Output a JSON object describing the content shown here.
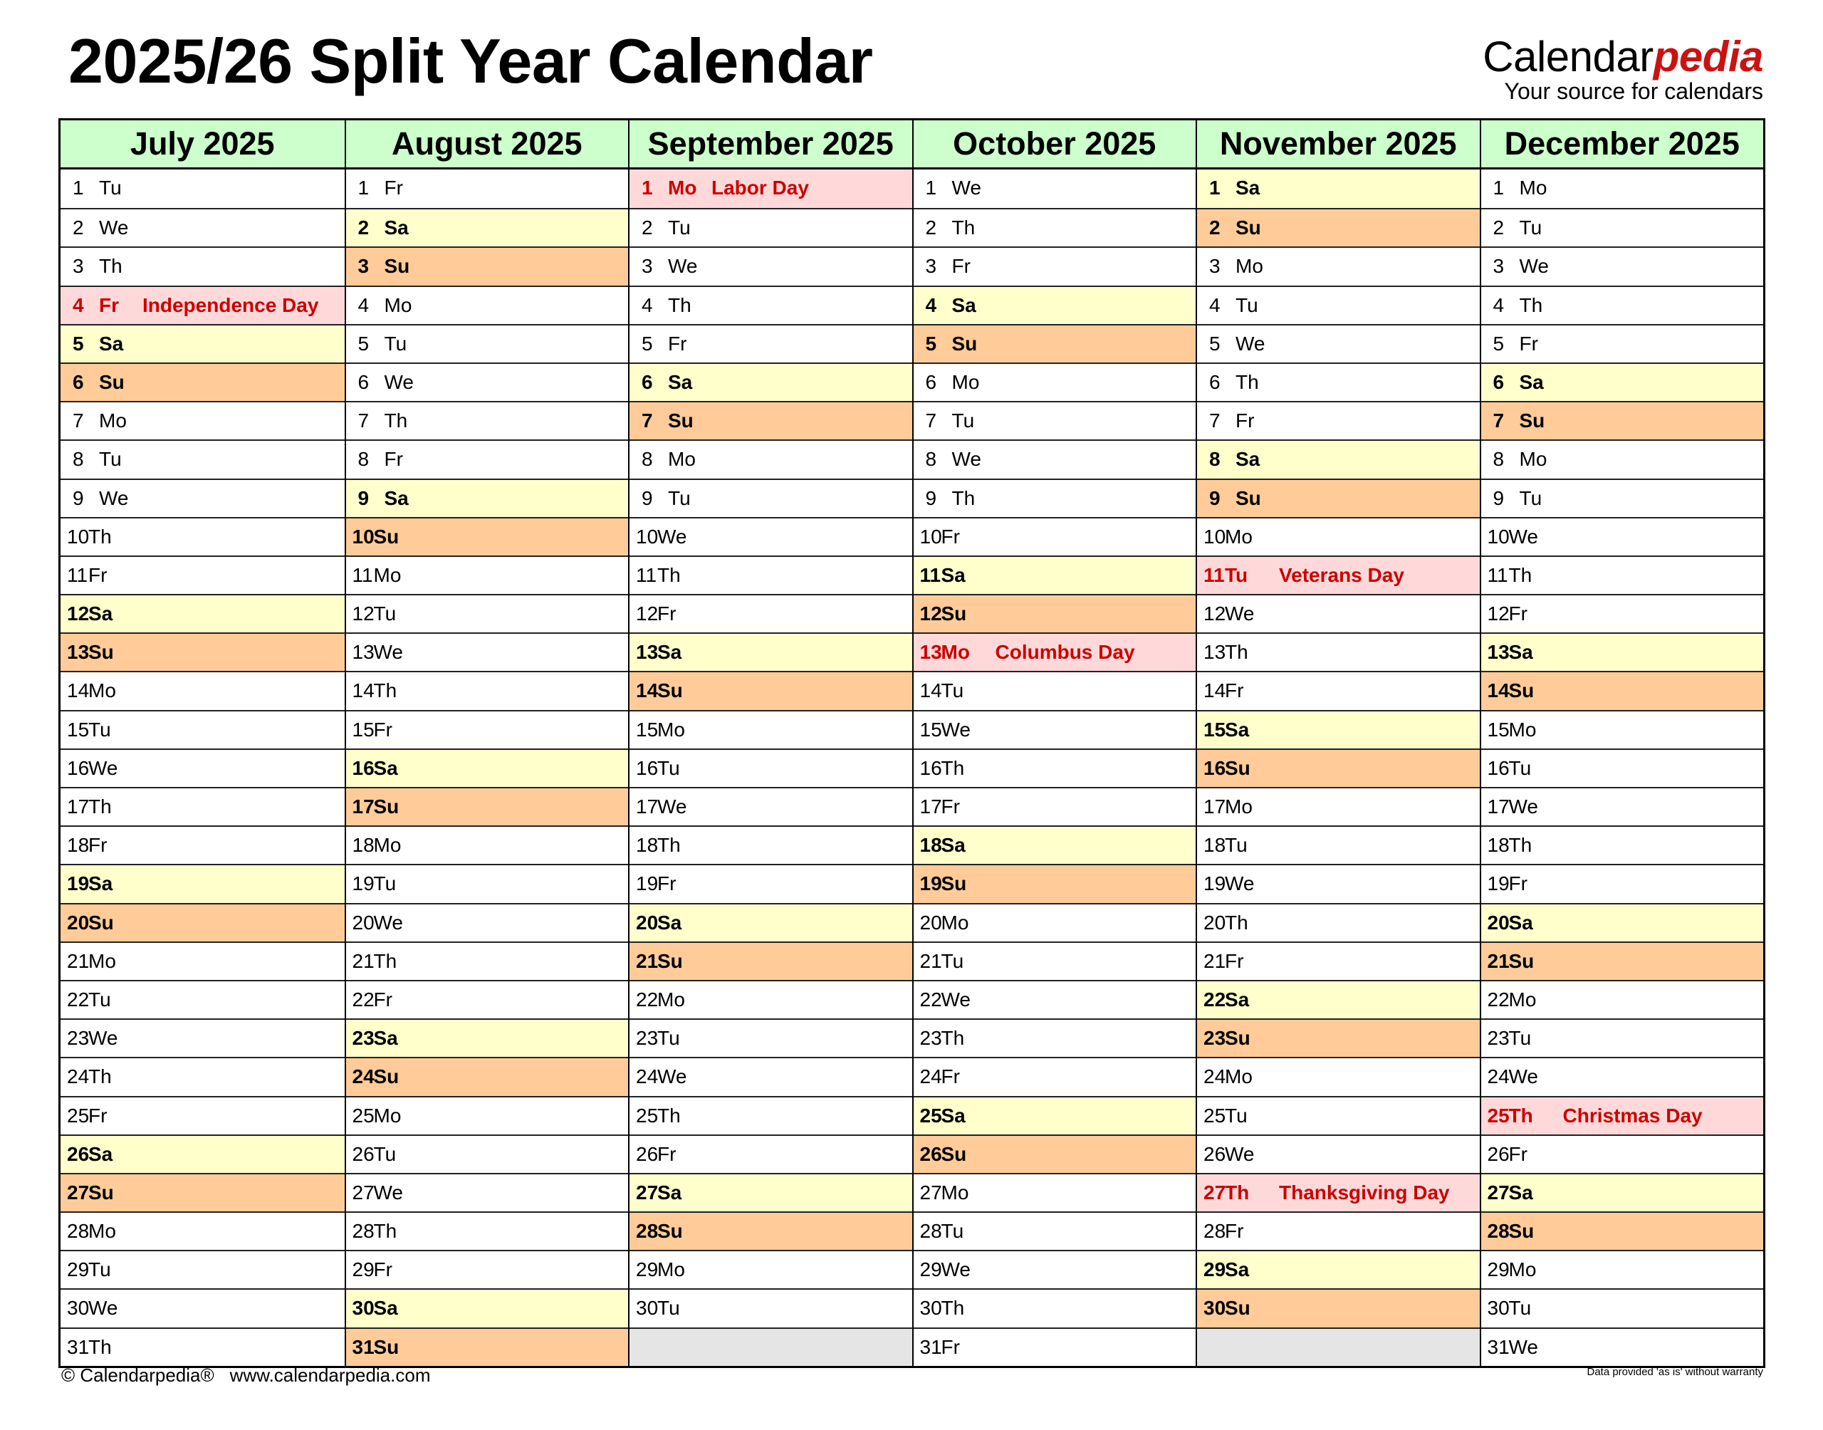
{
  "title": "2025/26 Split Year Calendar",
  "logo": {
    "brand_main": "Calendar",
    "brand_accent": "pedia",
    "tagline": "Your source for calendars"
  },
  "colors": {
    "header": "#CCFFCC",
    "saturday": "#FFFFCC",
    "sunday": "#FFCC99",
    "holiday_bg": "#FFD9D9",
    "holiday_text": "#CC0000",
    "empty": "#E5E5E5",
    "logo_accent": "#CC1111"
  },
  "months": [
    {
      "name": "July 2025",
      "weekdays": [
        "Tu",
        "We",
        "Th",
        "Fr",
        "Sa",
        "Su",
        "Mo",
        "Tu",
        "We",
        "Th",
        "Fr",
        "Sa",
        "Su",
        "Mo",
        "Tu",
        "We",
        "Th",
        "Fr",
        "Sa",
        "Su",
        "Mo",
        "Tu",
        "We",
        "Th",
        "Fr",
        "Sa",
        "Su",
        "Mo",
        "Tu",
        "We",
        "Th"
      ],
      "holidays": [
        {
          "day": 4,
          "name": "Independence Day"
        }
      ]
    },
    {
      "name": "August 2025",
      "weekdays": [
        "Fr",
        "Sa",
        "Su",
        "Mo",
        "Tu",
        "We",
        "Th",
        "Fr",
        "Sa",
        "Su",
        "Mo",
        "Tu",
        "We",
        "Th",
        "Fr",
        "Sa",
        "Su",
        "Mo",
        "Tu",
        "We",
        "Th",
        "Fr",
        "Sa",
        "Su",
        "Mo",
        "Tu",
        "We",
        "Th",
        "Fr",
        "Sa",
        "Su"
      ],
      "holidays": []
    },
    {
      "name": "September 2025",
      "weekdays": [
        "Mo",
        "Tu",
        "We",
        "Th",
        "Fr",
        "Sa",
        "Su",
        "Mo",
        "Tu",
        "We",
        "Th",
        "Fr",
        "Sa",
        "Su",
        "Mo",
        "Tu",
        "We",
        "Th",
        "Fr",
        "Sa",
        "Su",
        "Mo",
        "Tu",
        "We",
        "Th",
        "Fr",
        "Sa",
        "Su",
        "Mo",
        "Tu"
      ],
      "holidays": [
        {
          "day": 1,
          "name": "Labor Day"
        }
      ]
    },
    {
      "name": "October 2025",
      "weekdays": [
        "We",
        "Th",
        "Fr",
        "Sa",
        "Su",
        "Mo",
        "Tu",
        "We",
        "Th",
        "Fr",
        "Sa",
        "Su",
        "Mo",
        "Tu",
        "We",
        "Th",
        "Fr",
        "Sa",
        "Su",
        "Mo",
        "Tu",
        "We",
        "Th",
        "Fr",
        "Sa",
        "Su",
        "Mo",
        "Tu",
        "We",
        "Th",
        "Fr"
      ],
      "holidays": [
        {
          "day": 13,
          "name": "Columbus Day"
        }
      ]
    },
    {
      "name": "November 2025",
      "weekdays": [
        "Sa",
        "Su",
        "Mo",
        "Tu",
        "We",
        "Th",
        "Fr",
        "Sa",
        "Su",
        "Mo",
        "Tu",
        "We",
        "Th",
        "Fr",
        "Sa",
        "Su",
        "Mo",
        "Tu",
        "We",
        "Th",
        "Fr",
        "Sa",
        "Su",
        "Mo",
        "Tu",
        "We",
        "Th",
        "Fr",
        "Sa",
        "Su"
      ],
      "holidays": [
        {
          "day": 11,
          "name": "Veterans Day"
        },
        {
          "day": 27,
          "name": "Thanksgiving Day"
        }
      ]
    },
    {
      "name": "December 2025",
      "weekdays": [
        "Mo",
        "Tu",
        "We",
        "Th",
        "Fr",
        "Sa",
        "Su",
        "Mo",
        "Tu",
        "We",
        "Th",
        "Fr",
        "Sa",
        "Su",
        "Mo",
        "Tu",
        "We",
        "Th",
        "Fr",
        "Sa",
        "Su",
        "Mo",
        "Tu",
        "We",
        "Th",
        "Fr",
        "Sa",
        "Su",
        "Mo",
        "Tu",
        "We"
      ],
      "holidays": [
        {
          "day": 25,
          "name": "Christmas Day"
        }
      ]
    }
  ],
  "footer": {
    "copyright": "© Calendarpedia®",
    "url": "www.calendarpedia.com",
    "disclaimer": "Data provided 'as is' without warranty"
  }
}
